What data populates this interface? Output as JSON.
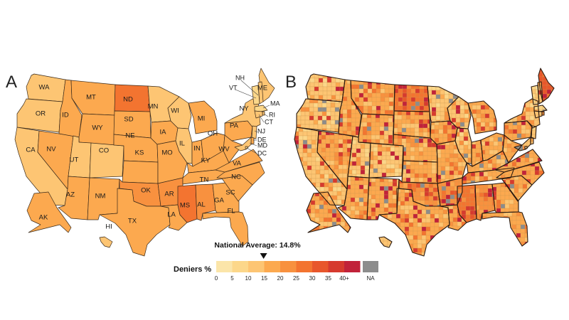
{
  "panels": {
    "a": {
      "letter": "A"
    },
    "b": {
      "letter": "B"
    }
  },
  "states": [
    {
      "code": "WA",
      "value": 11
    },
    {
      "code": "OR",
      "value": 12
    },
    {
      "code": "CA",
      "value": 12
    },
    {
      "code": "NV",
      "value": 19
    },
    {
      "code": "ID",
      "value": 18
    },
    {
      "code": "MT",
      "value": 19
    },
    {
      "code": "WY",
      "value": 18
    },
    {
      "code": "UT",
      "value": 13
    },
    {
      "code": "CO",
      "value": 12
    },
    {
      "code": "AZ",
      "value": 18
    },
    {
      "code": "NM",
      "value": 16
    },
    {
      "code": "ND",
      "value": 26
    },
    {
      "code": "SD",
      "value": 19
    },
    {
      "code": "NE",
      "value": 18
    },
    {
      "code": "KS",
      "value": 19
    },
    {
      "code": "OK",
      "value": 23
    },
    {
      "code": "TX",
      "value": 18
    },
    {
      "code": "MN",
      "value": 12
    },
    {
      "code": "IA",
      "value": 17
    },
    {
      "code": "MO",
      "value": 19
    },
    {
      "code": "AR",
      "value": 22
    },
    {
      "code": "LA",
      "value": 19
    },
    {
      "code": "WI",
      "value": 12
    },
    {
      "code": "IL",
      "value": 12
    },
    {
      "code": "MI",
      "value": 17
    },
    {
      "code": "IN",
      "value": 19
    },
    {
      "code": "OH",
      "value": 18
    },
    {
      "code": "KY",
      "value": 19
    },
    {
      "code": "TN",
      "value": 19
    },
    {
      "code": "MS",
      "value": 29
    },
    {
      "code": "AL",
      "value": 24
    },
    {
      "code": "GA",
      "value": 18
    },
    {
      "code": "FL",
      "value": 16
    },
    {
      "code": "SC",
      "value": 18
    },
    {
      "code": "NC",
      "value": 17
    },
    {
      "code": "VA",
      "value": 17
    },
    {
      "code": "WV",
      "value": 19
    },
    {
      "code": "PA",
      "value": 17
    },
    {
      "code": "NY",
      "value": 12
    },
    {
      "code": "ME",
      "value": 13
    },
    {
      "code": "NH",
      "value": 12
    },
    {
      "code": "VT",
      "value": 9
    },
    {
      "code": "MA",
      "value": 8
    },
    {
      "code": "RI",
      "value": 10
    },
    {
      "code": "CT",
      "value": 11
    },
    {
      "code": "NJ",
      "value": 13
    },
    {
      "code": "DE",
      "value": 15
    },
    {
      "code": "MD",
      "value": 14
    },
    {
      "code": "DC",
      "value": 8
    },
    {
      "code": "AK",
      "value": 18
    },
    {
      "code": "HI",
      "value": 11
    }
  ],
  "legend": {
    "title": "Deniers %",
    "national_average_label": "National Average: 14.8%",
    "national_average_value": 14.8,
    "bins": [
      {
        "from": 0,
        "to": 5,
        "color": "#fbe5a9"
      },
      {
        "from": 5,
        "to": 10,
        "color": "#fcd78a"
      },
      {
        "from": 10,
        "to": 15,
        "color": "#fdc573"
      },
      {
        "from": 15,
        "to": 20,
        "color": "#fca94f"
      },
      {
        "from": 20,
        "to": 25,
        "color": "#f8913f"
      },
      {
        "from": 25,
        "to": 30,
        "color": "#f37430"
      },
      {
        "from": 30,
        "to": 35,
        "color": "#e8562b"
      },
      {
        "from": 35,
        "to": 40,
        "color": "#d63a2e"
      },
      {
        "from": 40,
        "to": 45,
        "color": "#c1223a"
      }
    ],
    "tick_labels": [
      "0",
      "5",
      "10",
      "15",
      "20",
      "25",
      "30",
      "35",
      "40+"
    ],
    "na_label": "NA",
    "na_color": "#8c8c8c"
  }
}
